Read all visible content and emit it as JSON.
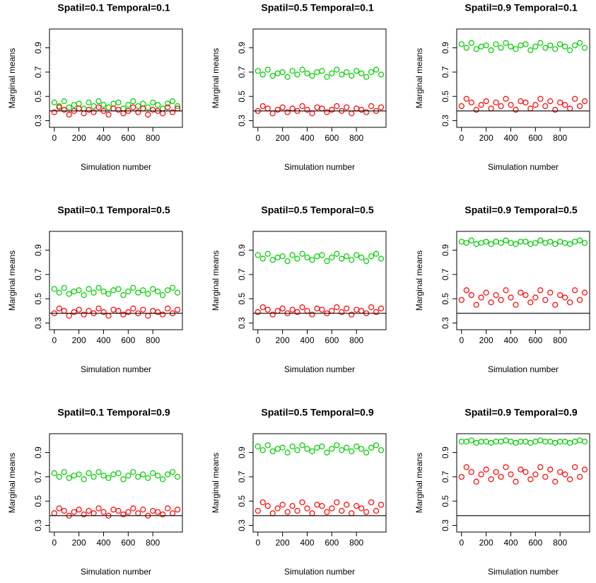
{
  "chart_data": [
    {
      "type": "scatter",
      "title": "Spatil=0.1 Temporal=0.1",
      "x_label": "Simulation number",
      "y_label": "Marginal means",
      "x": [
        0,
        40,
        80,
        120,
        160,
        200,
        240,
        280,
        320,
        360,
        400,
        440,
        480,
        520,
        560,
        600,
        640,
        680,
        720,
        760,
        800,
        840,
        880,
        920,
        960,
        1000
      ],
      "xlim": [
        -39,
        1040
      ],
      "xticks": [
        0,
        200,
        400,
        600,
        800
      ],
      "ylim": [
        0.245,
        1.055
      ],
      "yticks": [
        0.3,
        0.5,
        0.7,
        0.9
      ],
      "hline": 0.38,
      "hline_color": "#000000",
      "series": [
        {
          "color": "#00cc00",
          "values": [
            0.45,
            0.42,
            0.46,
            0.41,
            0.43,
            0.44,
            0.4,
            0.45,
            0.42,
            0.46,
            0.43,
            0.41,
            0.44,
            0.45,
            0.4,
            0.43,
            0.46,
            0.42,
            0.44,
            0.41,
            0.45,
            0.43,
            0.4,
            0.44,
            0.46,
            0.42
          ]
        },
        {
          "color": "#ff0000",
          "values": [
            0.37,
            0.41,
            0.39,
            0.35,
            0.38,
            0.4,
            0.36,
            0.39,
            0.37,
            0.41,
            0.38,
            0.35,
            0.4,
            0.39,
            0.36,
            0.38,
            0.41,
            0.37,
            0.4,
            0.35,
            0.39,
            0.38,
            0.36,
            0.41,
            0.37,
            0.4
          ]
        }
      ]
    },
    {
      "type": "scatter",
      "title": "Spatil=0.5 Temporal=0.1",
      "x_label": "Simulation number",
      "y_label": "Marginal means",
      "x": [
        0,
        40,
        80,
        120,
        160,
        200,
        240,
        280,
        320,
        360,
        400,
        440,
        480,
        520,
        560,
        600,
        640,
        680,
        720,
        760,
        800,
        840,
        880,
        920,
        960,
        1000
      ],
      "xlim": [
        -39,
        1040
      ],
      "xticks": [
        0,
        200,
        400,
        600,
        800
      ],
      "ylim": [
        0.245,
        1.055
      ],
      "yticks": [
        0.3,
        0.5,
        0.7,
        0.9
      ],
      "hline": 0.38,
      "hline_color": "#000000",
      "series": [
        {
          "color": "#00cc00",
          "values": [
            0.71,
            0.68,
            0.72,
            0.67,
            0.69,
            0.7,
            0.66,
            0.71,
            0.68,
            0.72,
            0.69,
            0.67,
            0.7,
            0.71,
            0.66,
            0.69,
            0.72,
            0.68,
            0.7,
            0.67,
            0.71,
            0.69,
            0.66,
            0.7,
            0.72,
            0.68
          ]
        },
        {
          "color": "#ff0000",
          "values": [
            0.38,
            0.42,
            0.4,
            0.36,
            0.39,
            0.41,
            0.37,
            0.4,
            0.38,
            0.42,
            0.39,
            0.36,
            0.41,
            0.4,
            0.37,
            0.39,
            0.42,
            0.38,
            0.41,
            0.36,
            0.4,
            0.39,
            0.37,
            0.42,
            0.38,
            0.41
          ]
        }
      ]
    },
    {
      "type": "scatter",
      "title": "Spatil=0.9 Temporal=0.1",
      "x_label": "Simulation number",
      "y_label": "Marginal means",
      "x": [
        0,
        40,
        80,
        120,
        160,
        200,
        240,
        280,
        320,
        360,
        400,
        440,
        480,
        520,
        560,
        600,
        640,
        680,
        720,
        760,
        800,
        840,
        880,
        920,
        960,
        1000
      ],
      "xlim": [
        -39,
        1040
      ],
      "xticks": [
        0,
        200,
        400,
        600,
        800
      ],
      "ylim": [
        0.245,
        1.055
      ],
      "yticks": [
        0.3,
        0.5,
        0.7,
        0.9
      ],
      "hline": 0.38,
      "hline_color": "#000000",
      "series": [
        {
          "color": "#00cc00",
          "values": [
            0.93,
            0.9,
            0.94,
            0.89,
            0.91,
            0.92,
            0.88,
            0.93,
            0.9,
            0.94,
            0.91,
            0.89,
            0.92,
            0.93,
            0.88,
            0.91,
            0.94,
            0.9,
            0.92,
            0.89,
            0.93,
            0.91,
            0.88,
            0.92,
            0.94,
            0.9
          ]
        },
        {
          "color": "#ff0000",
          "values": [
            0.42,
            0.48,
            0.45,
            0.39,
            0.43,
            0.46,
            0.4,
            0.45,
            0.42,
            0.48,
            0.43,
            0.39,
            0.46,
            0.45,
            0.4,
            0.43,
            0.48,
            0.42,
            0.46,
            0.39,
            0.45,
            0.43,
            0.4,
            0.48,
            0.42,
            0.46
          ]
        }
      ]
    },
    {
      "type": "scatter",
      "title": "Spatil=0.1 Temporal=0.5",
      "x_label": "Simulation number",
      "y_label": "Marginal means",
      "x": [
        0,
        40,
        80,
        120,
        160,
        200,
        240,
        280,
        320,
        360,
        400,
        440,
        480,
        520,
        560,
        600,
        640,
        680,
        720,
        760,
        800,
        840,
        880,
        920,
        960,
        1000
      ],
      "xlim": [
        -39,
        1040
      ],
      "xticks": [
        0,
        200,
        400,
        600,
        800
      ],
      "ylim": [
        0.245,
        1.055
      ],
      "yticks": [
        0.3,
        0.5,
        0.7,
        0.9
      ],
      "hline": 0.38,
      "hline_color": "#000000",
      "series": [
        {
          "color": "#00cc00",
          "values": [
            0.58,
            0.55,
            0.59,
            0.54,
            0.56,
            0.57,
            0.53,
            0.58,
            0.55,
            0.59,
            0.56,
            0.54,
            0.57,
            0.58,
            0.53,
            0.56,
            0.59,
            0.55,
            0.57,
            0.54,
            0.58,
            0.56,
            0.53,
            0.57,
            0.59,
            0.55
          ]
        },
        {
          "color": "#ff0000",
          "values": [
            0.38,
            0.42,
            0.4,
            0.36,
            0.39,
            0.41,
            0.37,
            0.4,
            0.38,
            0.42,
            0.39,
            0.36,
            0.41,
            0.4,
            0.37,
            0.39,
            0.42,
            0.38,
            0.41,
            0.36,
            0.4,
            0.39,
            0.37,
            0.42,
            0.38,
            0.41
          ]
        }
      ]
    },
    {
      "type": "scatter",
      "title": "Spatil=0.5 Temporal=0.5",
      "x_label": "Simulation number",
      "y_label": "Marginal means",
      "x": [
        0,
        40,
        80,
        120,
        160,
        200,
        240,
        280,
        320,
        360,
        400,
        440,
        480,
        520,
        560,
        600,
        640,
        680,
        720,
        760,
        800,
        840,
        880,
        920,
        960,
        1000
      ],
      "xlim": [
        -39,
        1040
      ],
      "xticks": [
        0,
        200,
        400,
        600,
        800
      ],
      "ylim": [
        0.245,
        1.055
      ],
      "yticks": [
        0.3,
        0.5,
        0.7,
        0.9
      ],
      "hline": 0.38,
      "hline_color": "#000000",
      "series": [
        {
          "color": "#00cc00",
          "values": [
            0.86,
            0.83,
            0.87,
            0.82,
            0.84,
            0.85,
            0.81,
            0.86,
            0.83,
            0.87,
            0.84,
            0.82,
            0.85,
            0.86,
            0.81,
            0.84,
            0.87,
            0.83,
            0.85,
            0.82,
            0.86,
            0.84,
            0.81,
            0.85,
            0.87,
            0.83
          ]
        },
        {
          "color": "#ff0000",
          "values": [
            0.39,
            0.43,
            0.41,
            0.37,
            0.4,
            0.42,
            0.38,
            0.41,
            0.39,
            0.43,
            0.4,
            0.37,
            0.42,
            0.41,
            0.38,
            0.4,
            0.43,
            0.39,
            0.42,
            0.37,
            0.41,
            0.4,
            0.38,
            0.43,
            0.39,
            0.42
          ]
        }
      ]
    },
    {
      "type": "scatter",
      "title": "Spatil=0.9 Temporal=0.5",
      "x_label": "Simulation number",
      "y_label": "Marginal means",
      "x": [
        0,
        40,
        80,
        120,
        160,
        200,
        240,
        280,
        320,
        360,
        400,
        440,
        480,
        520,
        560,
        600,
        640,
        680,
        720,
        760,
        800,
        840,
        880,
        920,
        960,
        1000
      ],
      "xlim": [
        -39,
        1040
      ],
      "xticks": [
        0,
        200,
        400,
        600,
        800
      ],
      "ylim": [
        0.245,
        1.055
      ],
      "yticks": [
        0.3,
        0.5,
        0.7,
        0.9
      ],
      "hline": 0.38,
      "hline_color": "#000000",
      "series": [
        {
          "color": "#00cc00",
          "values": [
            0.97,
            0.96,
            0.98,
            0.95,
            0.96,
            0.97,
            0.95,
            0.97,
            0.96,
            0.98,
            0.96,
            0.95,
            0.97,
            0.97,
            0.95,
            0.96,
            0.98,
            0.96,
            0.97,
            0.95,
            0.97,
            0.96,
            0.95,
            0.97,
            0.98,
            0.96
          ]
        },
        {
          "color": "#ff0000",
          "values": [
            0.49,
            0.57,
            0.53,
            0.45,
            0.51,
            0.55,
            0.47,
            0.53,
            0.49,
            0.57,
            0.51,
            0.45,
            0.55,
            0.53,
            0.47,
            0.51,
            0.57,
            0.49,
            0.55,
            0.45,
            0.53,
            0.51,
            0.47,
            0.57,
            0.49,
            0.55
          ]
        }
      ]
    },
    {
      "type": "scatter",
      "title": "Spatil=0.1 Temporal=0.9",
      "x_label": "Simulation number",
      "y_label": "Marginal means",
      "x": [
        0,
        40,
        80,
        120,
        160,
        200,
        240,
        280,
        320,
        360,
        400,
        440,
        480,
        520,
        560,
        600,
        640,
        680,
        720,
        760,
        800,
        840,
        880,
        920,
        960,
        1000
      ],
      "xlim": [
        -39,
        1040
      ],
      "xticks": [
        0,
        200,
        400,
        600,
        800
      ],
      "ylim": [
        0.245,
        1.055
      ],
      "yticks": [
        0.3,
        0.5,
        0.7,
        0.9
      ],
      "hline": 0.38,
      "hline_color": "#000000",
      "series": [
        {
          "color": "#00cc00",
          "values": [
            0.73,
            0.7,
            0.74,
            0.69,
            0.71,
            0.72,
            0.68,
            0.73,
            0.7,
            0.74,
            0.71,
            0.69,
            0.72,
            0.73,
            0.68,
            0.71,
            0.74,
            0.7,
            0.72,
            0.69,
            0.73,
            0.71,
            0.68,
            0.72,
            0.74,
            0.7
          ]
        },
        {
          "color": "#ff0000",
          "values": [
            0.4,
            0.44,
            0.42,
            0.38,
            0.41,
            0.43,
            0.39,
            0.42,
            0.4,
            0.44,
            0.41,
            0.38,
            0.43,
            0.42,
            0.39,
            0.41,
            0.44,
            0.4,
            0.43,
            0.38,
            0.42,
            0.41,
            0.39,
            0.44,
            0.4,
            0.43
          ]
        }
      ]
    },
    {
      "type": "scatter",
      "title": "Spatil=0.5 Temporal=0.9",
      "x_label": "Simulation number",
      "y_label": "Marginal means",
      "x": [
        0,
        40,
        80,
        120,
        160,
        200,
        240,
        280,
        320,
        360,
        400,
        440,
        480,
        520,
        560,
        600,
        640,
        680,
        720,
        760,
        800,
        840,
        880,
        920,
        960,
        1000
      ],
      "xlim": [
        -39,
        1040
      ],
      "xticks": [
        0,
        200,
        400,
        600,
        800
      ],
      "ylim": [
        0.245,
        1.055
      ],
      "yticks": [
        0.3,
        0.5,
        0.7,
        0.9
      ],
      "hline": 0.38,
      "hline_color": "#000000",
      "series": [
        {
          "color": "#00cc00",
          "values": [
            0.95,
            0.92,
            0.96,
            0.91,
            0.93,
            0.94,
            0.9,
            0.95,
            0.92,
            0.96,
            0.93,
            0.91,
            0.94,
            0.95,
            0.9,
            0.93,
            0.96,
            0.92,
            0.94,
            0.91,
            0.95,
            0.93,
            0.9,
            0.94,
            0.96,
            0.92
          ]
        },
        {
          "color": "#ff0000",
          "values": [
            0.42,
            0.49,
            0.46,
            0.4,
            0.44,
            0.47,
            0.41,
            0.46,
            0.42,
            0.49,
            0.44,
            0.4,
            0.47,
            0.46,
            0.41,
            0.44,
            0.49,
            0.42,
            0.47,
            0.4,
            0.46,
            0.44,
            0.41,
            0.49,
            0.42,
            0.47
          ]
        }
      ]
    },
    {
      "type": "scatter",
      "title": "Spatil=0.9 Temporal=0.9",
      "x_label": "Simulation number",
      "y_label": "Marginal means",
      "x": [
        0,
        40,
        80,
        120,
        160,
        200,
        240,
        280,
        320,
        360,
        400,
        440,
        480,
        520,
        560,
        600,
        640,
        680,
        720,
        760,
        800,
        840,
        880,
        920,
        960,
        1000
      ],
      "xlim": [
        -39,
        1040
      ],
      "xticks": [
        0,
        200,
        400,
        600,
        800
      ],
      "ylim": [
        0.245,
        1.055
      ],
      "yticks": [
        0.3,
        0.5,
        0.7,
        0.9
      ],
      "hline": 0.38,
      "hline_color": "#000000",
      "series": [
        {
          "color": "#00cc00",
          "values": [
            0.99,
            0.99,
            1.0,
            0.98,
            0.99,
            0.99,
            0.98,
            0.99,
            0.99,
            1.0,
            0.99,
            0.98,
            0.99,
            0.99,
            0.98,
            0.99,
            1.0,
            0.99,
            0.99,
            0.98,
            0.99,
            0.99,
            0.98,
            0.99,
            1.0,
            0.99
          ]
        },
        {
          "color": "#ff0000",
          "values": [
            0.7,
            0.78,
            0.74,
            0.66,
            0.72,
            0.76,
            0.68,
            0.74,
            0.7,
            0.78,
            0.72,
            0.66,
            0.76,
            0.74,
            0.68,
            0.72,
            0.78,
            0.7,
            0.76,
            0.66,
            0.74,
            0.72,
            0.68,
            0.78,
            0.7,
            0.76
          ]
        }
      ]
    }
  ]
}
